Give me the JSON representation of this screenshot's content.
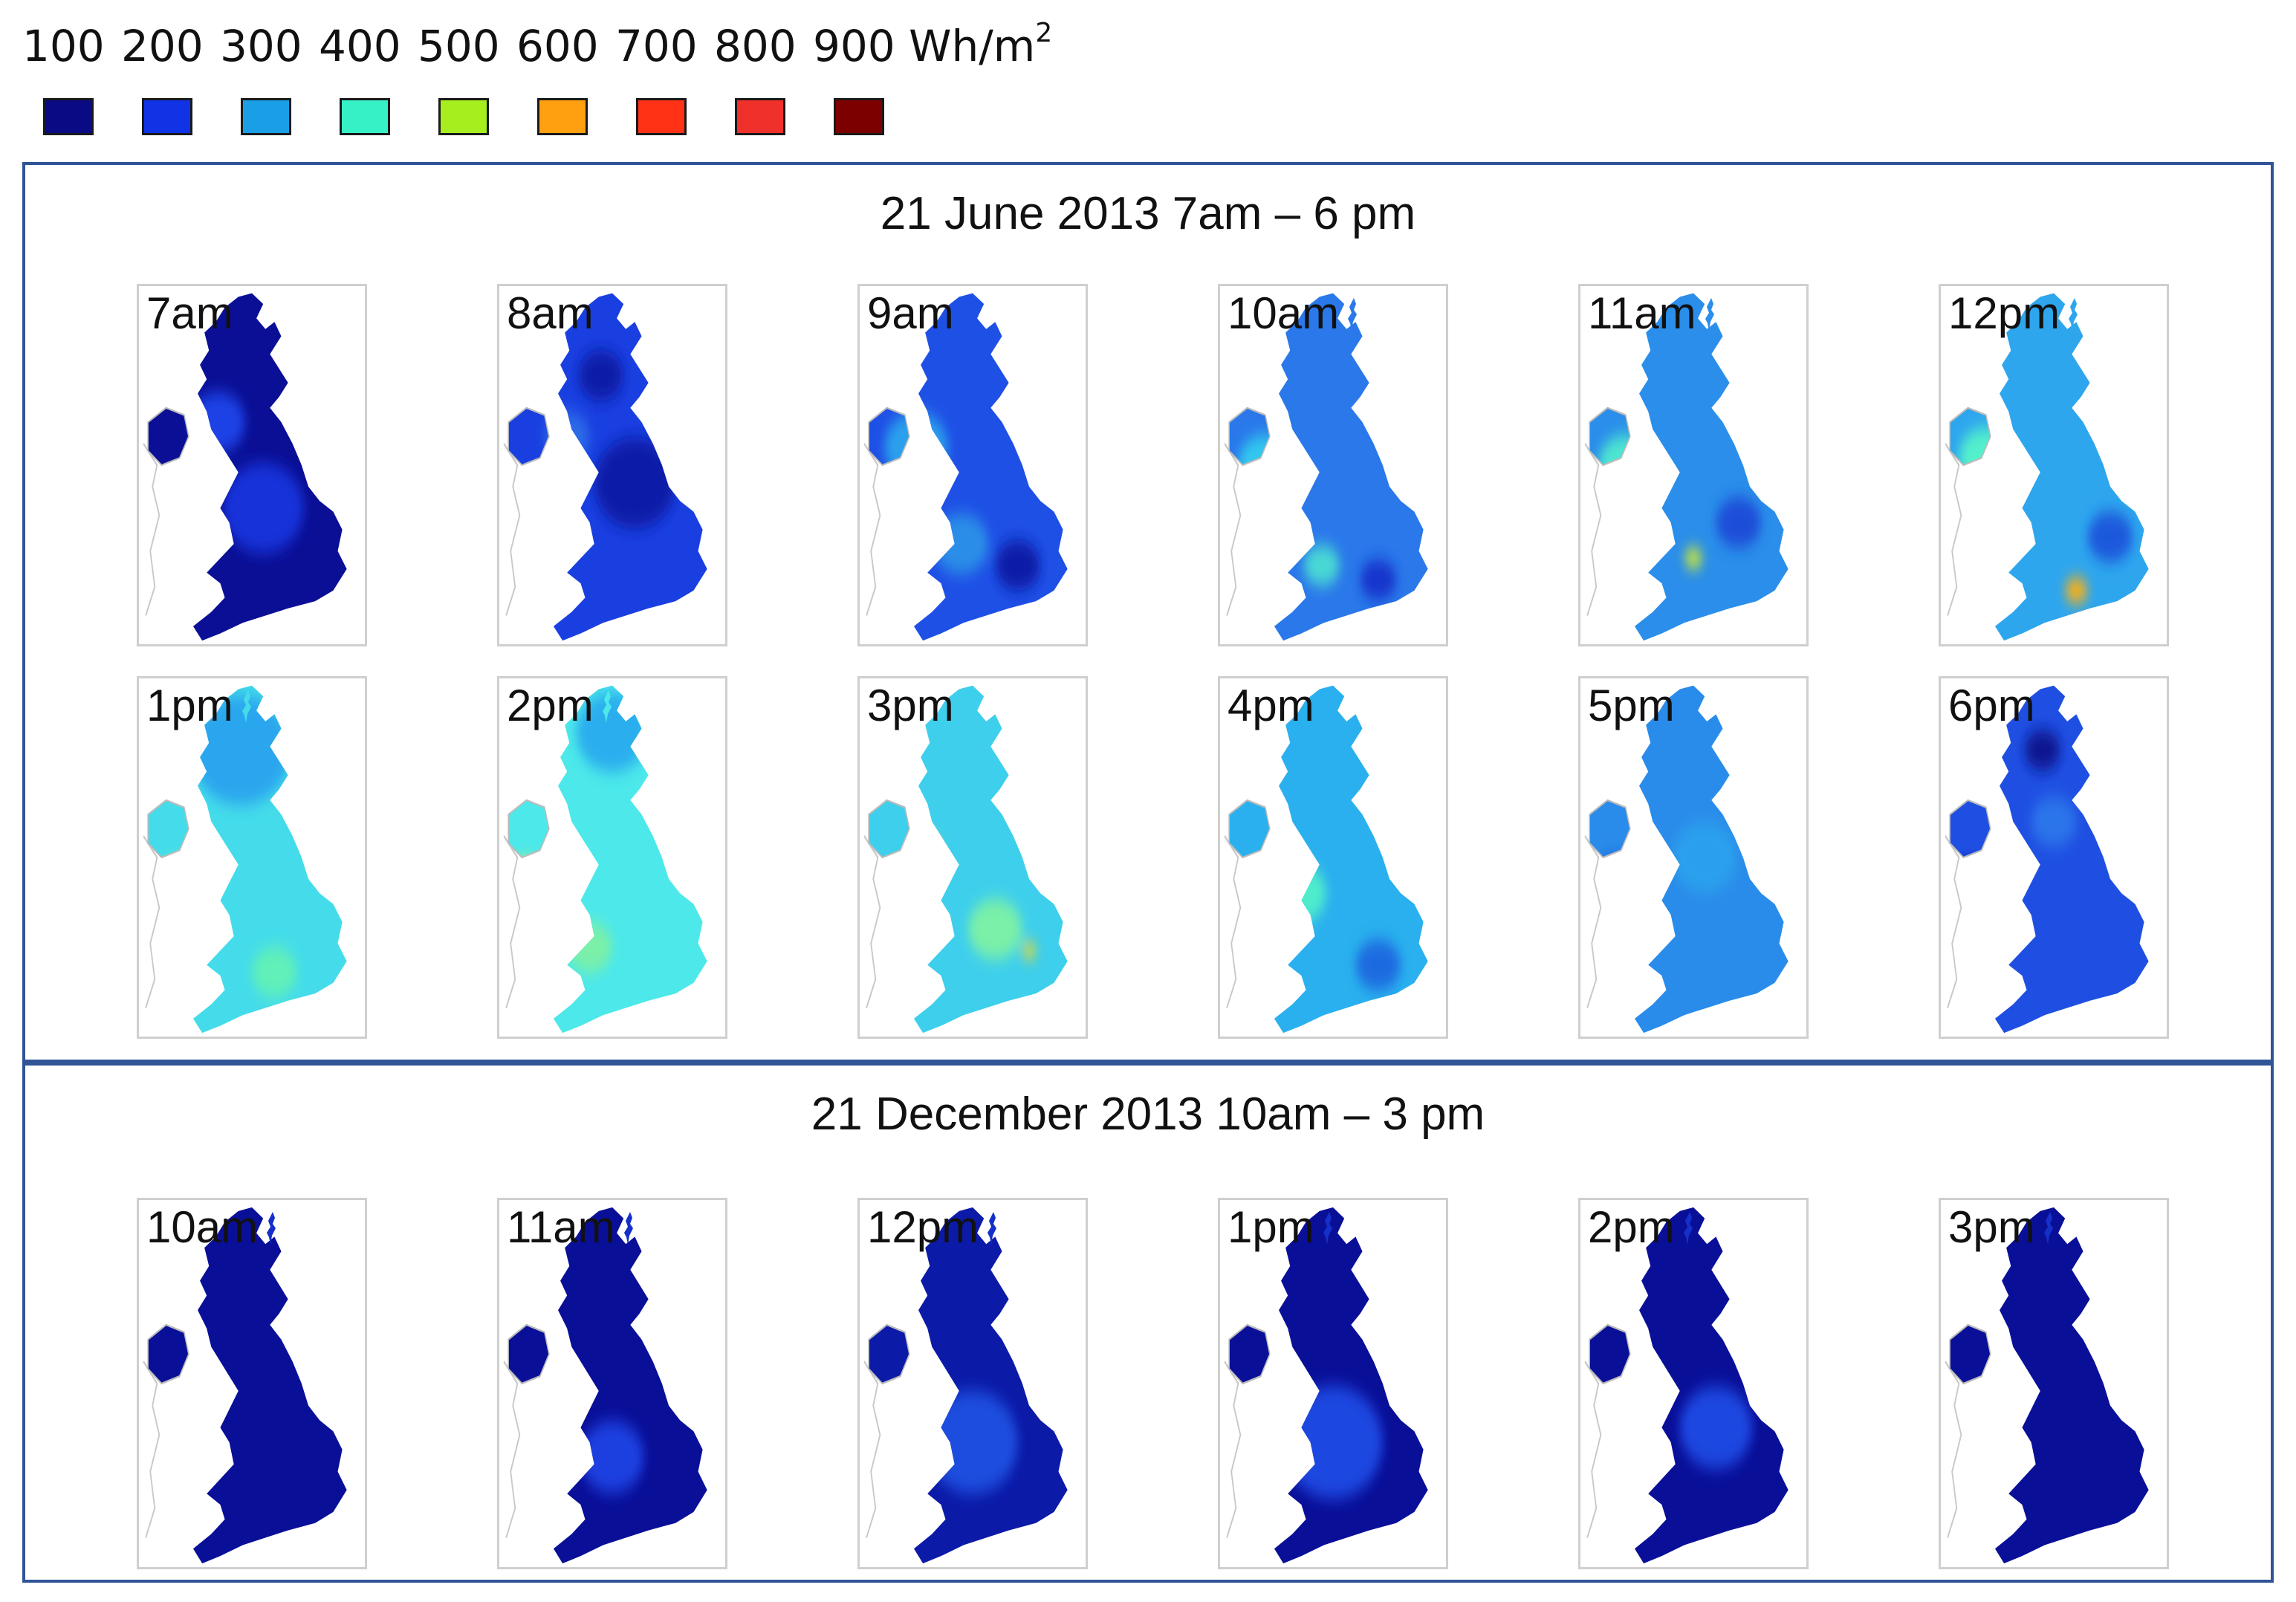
{
  "legend": {
    "levels": [
      "100",
      "200",
      "300",
      "400",
      "500",
      "600",
      "700",
      "800",
      "900"
    ],
    "unit": "Wh/m",
    "unit_superscript": "2",
    "colors": [
      "#0a0a85",
      "#1133e6",
      "#1a9ee6",
      "#36f0c6",
      "#a6ee1e",
      "#ffa010",
      "#ff3216",
      "#f0302a",
      "#7d0000"
    ]
  },
  "panels": [
    {
      "title": "21 June 2013 7am – 6 pm",
      "maps": [
        {
          "label": "7am",
          "fill": "#0b0f95",
          "blobs": [
            [
              "#1533d8",
              0.55,
              0.62,
              0.18
            ],
            [
              "#1a43e6",
              0.35,
              0.38,
              0.12
            ]
          ]
        },
        {
          "label": "8am",
          "fill": "#1a3fe0",
          "blobs": [
            [
              "#0e1aa8",
              0.6,
              0.55,
              0.18
            ],
            [
              "#0e1aa8",
              0.45,
              0.25,
              0.1
            ],
            [
              "#2a6ae8",
              0.3,
              0.42,
              0.1
            ]
          ]
        },
        {
          "label": "9am",
          "fill": "#1f50e6",
          "blobs": [
            [
              "#2aa0ec",
              0.25,
              0.45,
              0.14
            ],
            [
              "#2a8ee8",
              0.45,
              0.72,
              0.12
            ],
            [
              "#0e1aa8",
              0.7,
              0.78,
              0.1
            ]
          ]
        },
        {
          "label": "10am",
          "fill": "#2a78ea",
          "blobs": [
            [
              "#33c8ee",
              0.2,
              0.5,
              0.12
            ],
            [
              "#4ad8d4",
              0.45,
              0.78,
              0.08
            ],
            [
              "#1536cc",
              0.7,
              0.82,
              0.08
            ]
          ]
        },
        {
          "label": "11am",
          "fill": "#2a8eea",
          "blobs": [
            [
              "#4ee6d0",
              0.2,
              0.5,
              0.12
            ],
            [
              "#cfe830",
              0.5,
              0.76,
              0.04
            ],
            [
              "#1d4ed8",
              0.7,
              0.66,
              0.1
            ]
          ]
        },
        {
          "label": "12pm",
          "fill": "#2ea6ee",
          "blobs": [
            [
              "#52f0cc",
              0.2,
              0.48,
              0.12
            ],
            [
              "#ffb010",
              0.6,
              0.85,
              0.05
            ],
            [
              "#1f58dc",
              0.75,
              0.7,
              0.1
            ]
          ]
        },
        {
          "label": "1pm",
          "fill": "#44dcea",
          "blobs": [
            [
              "#2aa6ee",
              0.45,
              0.2,
              0.22
            ],
            [
              "#60f0b8",
              0.6,
              0.82,
              0.1
            ],
            [
              "#6ef0b0",
              0.15,
              0.55,
              0.06
            ]
          ]
        },
        {
          "label": "2pm",
          "fill": "#4ce8ea",
          "blobs": [
            [
              "#2aaeee",
              0.5,
              0.15,
              0.16
            ],
            [
              "#f2f032",
              0.12,
              0.55,
              0.06
            ],
            [
              "#7af0a8",
              0.4,
              0.75,
              0.1
            ]
          ]
        },
        {
          "label": "3pm",
          "fill": "#3ecfec",
          "blobs": [
            [
              "#f4e834",
              0.3,
              0.48,
              0.05
            ],
            [
              "#7af0a8",
              0.6,
              0.7,
              0.12
            ],
            [
              "#f6d818",
              0.75,
              0.76,
              0.03
            ]
          ]
        },
        {
          "label": "4pm",
          "fill": "#2ab0ee",
          "blobs": [
            [
              "#50eccc",
              0.35,
              0.6,
              0.12
            ],
            [
              "#1d6ae0",
              0.7,
              0.8,
              0.1
            ]
          ]
        },
        {
          "label": "5pm",
          "fill": "#2a8cea",
          "blobs": [
            [
              "#1d58dc",
              0.15,
              0.55,
              0.08
            ],
            [
              "#2aa0ec",
              0.55,
              0.5,
              0.14
            ]
          ]
        },
        {
          "label": "6pm",
          "fill": "#1f4fe2",
          "blobs": [
            [
              "#0e1ba8",
              0.12,
              0.56,
              0.07
            ],
            [
              "#2a74ea",
              0.5,
              0.4,
              0.1
            ],
            [
              "#0b1290",
              0.45,
              0.2,
              0.08
            ]
          ]
        }
      ]
    },
    {
      "title": "21 December 2013 10am – 3 pm",
      "maps": [
        {
          "label": "10am",
          "fill": "#0a0f98",
          "blobs": []
        },
        {
          "label": "11am",
          "fill": "#0a0f98",
          "blobs": [
            [
              "#1a3fe0",
              0.5,
              0.7,
              0.14
            ]
          ]
        },
        {
          "label": "12pm",
          "fill": "#0c1aa8",
          "blobs": [
            [
              "#1d4ede",
              0.5,
              0.66,
              0.2
            ]
          ]
        },
        {
          "label": "1pm",
          "fill": "#0a0f98",
          "blobs": [
            [
              "#1d47e0",
              0.5,
              0.66,
              0.22
            ]
          ]
        },
        {
          "label": "2pm",
          "fill": "#0a0f98",
          "blobs": [
            [
              "#1d47e0",
              0.6,
              0.62,
              0.16
            ]
          ]
        },
        {
          "label": "3pm",
          "fill": "#0a0f98",
          "blobs": []
        }
      ]
    }
  ]
}
